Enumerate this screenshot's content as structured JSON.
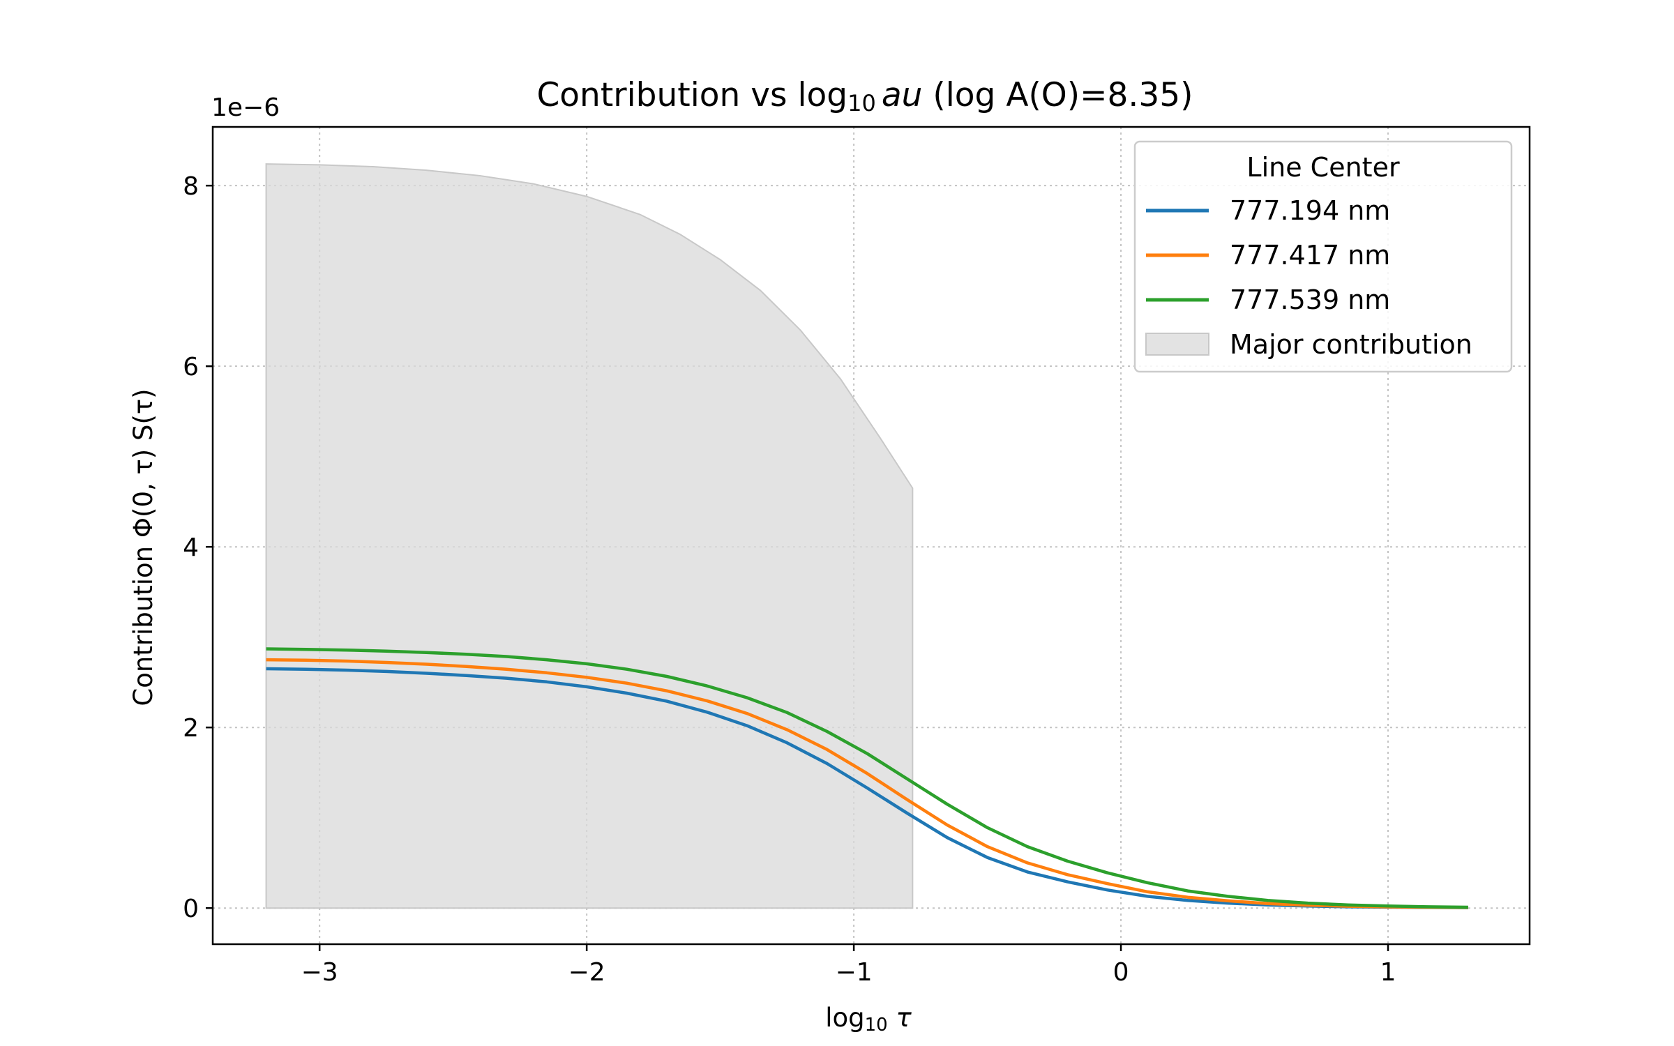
{
  "chart_data": {
    "type": "line",
    "title_parts": [
      "Contribution vs log",
      "10",
      "au",
      " (log A(O)=8.35)"
    ],
    "xlabel_parts": [
      "log",
      "10",
      " τ"
    ],
    "ylabel": "Contribution Φ(0, τ) S(τ)",
    "y_offset_text": "1e−6",
    "xlim": [
      -3.4,
      1.53
    ],
    "ylim": [
      -0.4,
      8.65
    ],
    "x_ticks": [
      -3,
      -2,
      -1,
      0,
      1
    ],
    "x_tick_labels": [
      "−3",
      "−2",
      "−1",
      "0",
      "1"
    ],
    "y_ticks": [
      0,
      2,
      4,
      6,
      8
    ],
    "y_tick_labels": [
      "0",
      "2",
      "4",
      "6",
      "8"
    ],
    "grid": true,
    "legend": {
      "title": "Line Center",
      "placement": "upper right",
      "entries": [
        "777.194 nm",
        "777.417 nm",
        "777.539 nm",
        "Major contribution"
      ]
    },
    "x": [
      -3.2,
      -3.05,
      -2.9,
      -2.75,
      -2.6,
      -2.45,
      -2.3,
      -2.15,
      -2.0,
      -1.85,
      -1.7,
      -1.55,
      -1.4,
      -1.25,
      -1.1,
      -0.95,
      -0.8,
      -0.65,
      -0.5,
      -0.35,
      -0.2,
      -0.05,
      0.1,
      0.25,
      0.4,
      0.55,
      0.7,
      0.85,
      1.0,
      1.15,
      1.3
    ],
    "series": [
      {
        "name": "777.194 nm",
        "color": "#1f77b4",
        "values": [
          2.65,
          2.645,
          2.635,
          2.62,
          2.6,
          2.575,
          2.545,
          2.505,
          2.45,
          2.38,
          2.29,
          2.17,
          2.02,
          1.83,
          1.6,
          1.33,
          1.05,
          0.78,
          0.56,
          0.4,
          0.29,
          0.2,
          0.13,
          0.085,
          0.055,
          0.035,
          0.022,
          0.014,
          0.01,
          0.007,
          0.005
        ]
      },
      {
        "name": "777.417 nm",
        "color": "#ff7f0e",
        "values": [
          2.75,
          2.745,
          2.735,
          2.72,
          2.7,
          2.675,
          2.645,
          2.605,
          2.555,
          2.49,
          2.405,
          2.295,
          2.155,
          1.975,
          1.755,
          1.49,
          1.2,
          0.92,
          0.68,
          0.5,
          0.37,
          0.27,
          0.18,
          0.12,
          0.08,
          0.05,
          0.032,
          0.02,
          0.013,
          0.009,
          0.006
        ]
      },
      {
        "name": "777.539 nm",
        "color": "#2ca02c",
        "values": [
          2.87,
          2.865,
          2.857,
          2.845,
          2.83,
          2.81,
          2.785,
          2.75,
          2.705,
          2.645,
          2.565,
          2.46,
          2.33,
          2.165,
          1.955,
          1.71,
          1.43,
          1.15,
          0.89,
          0.68,
          0.52,
          0.39,
          0.28,
          0.19,
          0.13,
          0.085,
          0.055,
          0.035,
          0.022,
          0.014,
          0.009
        ]
      }
    ],
    "shaded_region": {
      "name": "Major contribution",
      "color": "#d9d9d9",
      "x": [
        -3.2,
        -3.0,
        -2.8,
        -2.6,
        -2.4,
        -2.2,
        -2.0,
        -1.8,
        -1.65,
        -1.5,
        -1.35,
        -1.2,
        -1.05,
        -0.9,
        -0.78
      ],
      "y": [
        8.24,
        8.23,
        8.21,
        8.17,
        8.11,
        8.02,
        7.88,
        7.68,
        7.46,
        7.18,
        6.84,
        6.4,
        5.86,
        5.2,
        4.65
      ]
    }
  }
}
